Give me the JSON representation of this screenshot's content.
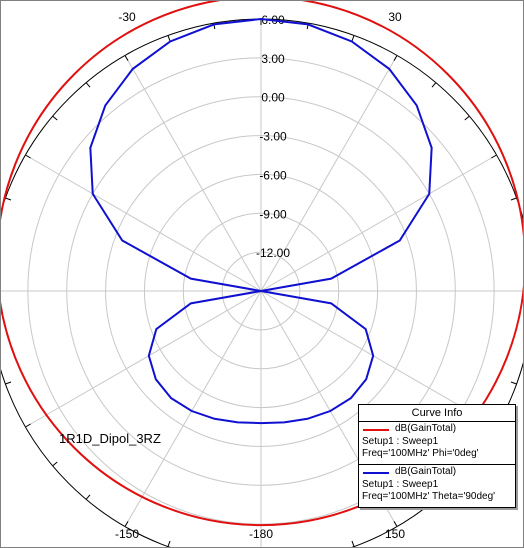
{
  "chart_data": {
    "type": "polar",
    "angle_unit": "deg",
    "zero_direction": "top",
    "angular_ticks": [
      -150,
      -180,
      150,
      -30,
      30
    ],
    "angular_tick_labels": [
      "-150",
      "-180",
      "150",
      "-30",
      "30"
    ],
    "radial_ticks": [
      6.0,
      3.0,
      0.0,
      -3.0,
      -6.0,
      -9.0,
      -12.0
    ],
    "radial_tick_labels": [
      "6.00",
      "3.00",
      "0.00",
      "-3.00",
      "-6.00",
      "-9.00",
      "-12.00"
    ],
    "rlim": [
      -15.0,
      6.0
    ],
    "grid": true,
    "annotation": "1R1D_Dipol_3RZ",
    "legend_title": "Curve Info",
    "legend_position": "bottom-right",
    "series": [
      {
        "name": "dB(GainTotal)",
        "setup": "Setup1 : Sweep1",
        "freq": "Freq='100MHz' Phi='0deg'",
        "color": "#e01010",
        "theta": [
          0,
          30,
          60,
          90,
          120,
          150,
          180,
          210,
          240,
          270,
          300,
          330
        ],
        "gain_db": [
          5.7,
          5.7,
          5.7,
          5.7,
          5.7,
          5.7,
          5.7,
          5.7,
          5.7,
          5.7,
          5.7,
          5.7
        ]
      },
      {
        "name": "dB(GainTotal)",
        "setup": "Setup1 : Sweep1",
        "freq": "Freq='100MHz' Theta='90deg'",
        "color": "#1010d0",
        "theta": [
          0,
          10,
          20,
          30,
          40,
          50,
          60,
          70,
          80,
          90,
          100,
          110,
          120,
          130,
          140,
          150,
          160,
          170,
          180
        ],
        "gain_db": [
          6.0,
          5.9,
          5.5,
          4.8,
          3.7,
          2.2,
          0.0,
          -3.6,
          -9.5,
          -15.0,
          -9.5,
          -6.4,
          -5.0,
          -4.4,
          -4.2,
          -4.3,
          -4.5,
          -4.7,
          -4.8
        ]
      }
    ]
  }
}
